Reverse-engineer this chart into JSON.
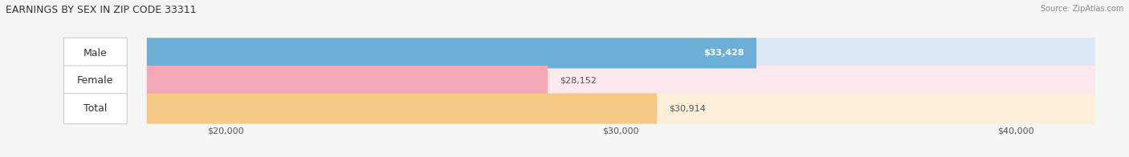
{
  "title": "EARNINGS BY SEX IN ZIP CODE 33311",
  "source": "Source: ZipAtlas.com",
  "categories": [
    "Male",
    "Female",
    "Total"
  ],
  "values": [
    33428,
    28152,
    30914
  ],
  "bar_colors": [
    "#6baed6",
    "#f4a8b8",
    "#f5c985"
  ],
  "bar_bg_colors": [
    "#dce8f5",
    "#fce8ed",
    "#fdf0d8"
  ],
  "label_colors": [
    "white",
    "#555555",
    "#555555"
  ],
  "value_labels": [
    "$33,428",
    "$28,152",
    "$30,914"
  ],
  "xmin": 18000,
  "xmax": 42000,
  "xticks": [
    20000,
    30000,
    40000
  ],
  "xtick_labels": [
    "$20,000",
    "$30,000",
    "$40,000"
  ],
  "background_color": "#f5f5f5",
  "title_fontsize": 9,
  "tick_fontsize": 8,
  "bar_label_fontsize": 9,
  "value_label_fontsize": 8
}
